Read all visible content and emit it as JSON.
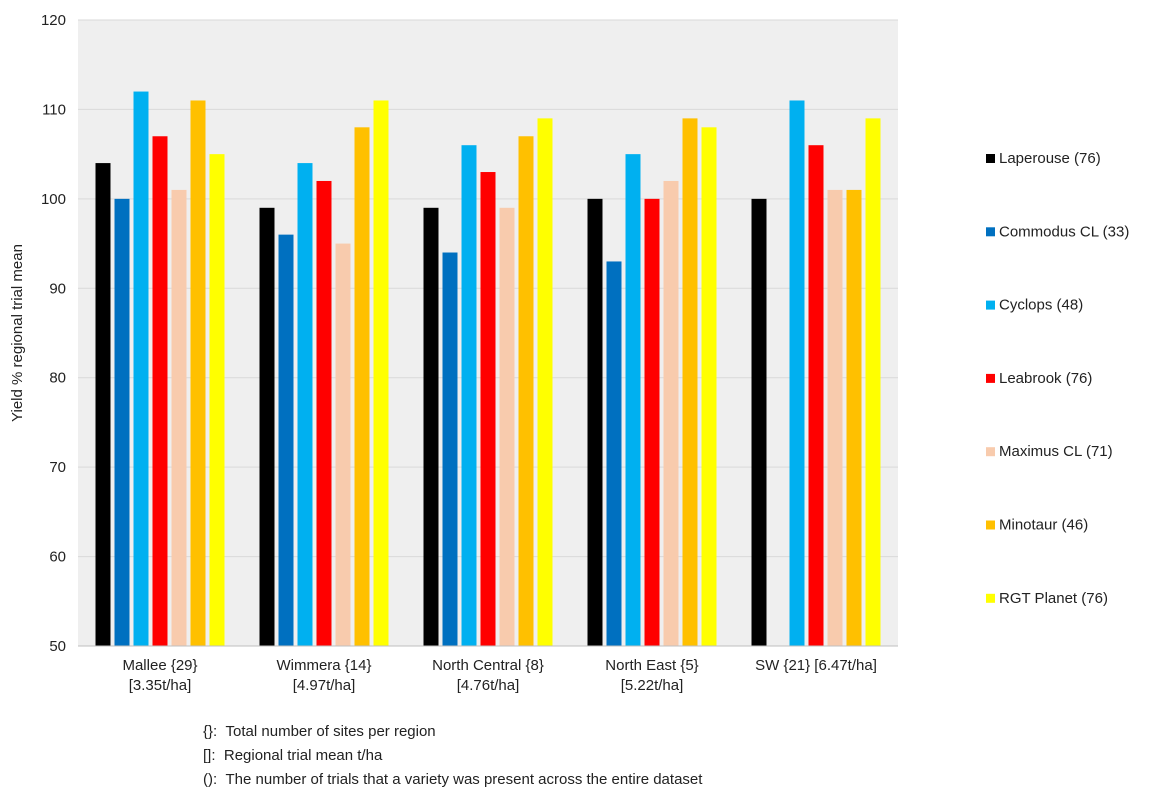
{
  "chart_data": {
    "type": "bar",
    "ylabel": "Yield % regional trial mean",
    "xlabel": "",
    "ylim": [
      50,
      120
    ],
    "yticks": [
      50,
      60,
      70,
      80,
      90,
      100,
      110,
      120
    ],
    "grid": true,
    "legend_position": "right",
    "categories": [
      [
        "Mallee {29}",
        "[3.35t/ha]"
      ],
      [
        "Wimmera {14}",
        "[4.97t/ha]"
      ],
      [
        "North Central {8}",
        "[4.76t/ha]"
      ],
      [
        "North East {5}",
        "[5.22t/ha]"
      ],
      [
        "SW {21} [6.47t/ha]"
      ]
    ],
    "series": [
      {
        "name": "Laperouse (76)",
        "color": "#000000",
        "values": [
          104,
          99,
          99,
          100,
          100
        ]
      },
      {
        "name": "Commodus CL (33)",
        "color": "#0070C0",
        "values": [
          100,
          96,
          94,
          93,
          null
        ]
      },
      {
        "name": "Cyclops (48)",
        "color": "#00B0F0",
        "values": [
          112,
          104,
          106,
          105,
          111
        ]
      },
      {
        "name": "Leabrook (76)",
        "color": "#FF0000",
        "values": [
          107,
          102,
          103,
          100,
          106
        ]
      },
      {
        "name": "Maximus CL (71)",
        "color": "#F8CBAD",
        "values": [
          101,
          95,
          99,
          102,
          101
        ]
      },
      {
        "name": "Minotaur (46)",
        "color": "#FFC000",
        "values": [
          111,
          108,
          107,
          109,
          101
        ]
      },
      {
        "name": "RGT Planet (76)",
        "color": "#FFFF00",
        "values": [
          105,
          111,
          109,
          108,
          109
        ]
      }
    ]
  },
  "notes": [
    {
      "symbol": "{}:",
      "text": "Total number of sites per region"
    },
    {
      "symbol": "[]:",
      "text": "Regional trial mean t/ha"
    },
    {
      "symbol": "():",
      "text": "The number of trials that a variety was present across the entire dataset"
    }
  ]
}
